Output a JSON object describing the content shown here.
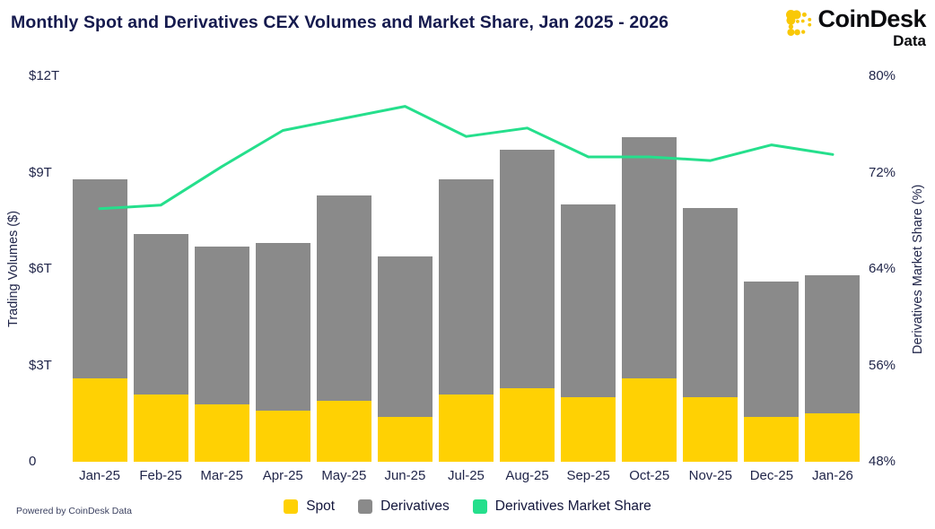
{
  "header": {
    "title": "Monthly Spot and Derivatives CEX Volumes and Market Share, Jan 2025 - 2026",
    "logo": {
      "brand": "CoinDesk",
      "sub": "Data",
      "icon_color": "#f9c806",
      "text_color": "#0a0b0e"
    }
  },
  "footer": {
    "powered_by": "Powered by CoinDesk Data"
  },
  "legend": [
    {
      "label": "Spot",
      "color": "#ffd103"
    },
    {
      "label": "Derivatives",
      "color": "#8a8a8a"
    },
    {
      "label": "Derivatives Market Share",
      "color": "#25df8c"
    }
  ],
  "chart_data": {
    "type": "combo-stacked-bar-line",
    "title": "Monthly Spot and Derivatives CEX Volumes and Market Share, Jan 2025 - 2026",
    "categories": [
      "Jan-25",
      "Feb-25",
      "Mar-25",
      "Apr-25",
      "May-25",
      "Jun-25",
      "Jul-25",
      "Aug-25",
      "Sep-25",
      "Oct-25",
      "Nov-25",
      "Dec-25",
      "Jan-26"
    ],
    "series": [
      {
        "name": "Spot",
        "type": "bar",
        "stack": "volume",
        "unit": "trillion USD",
        "color": "#ffd103",
        "values": [
          2.6,
          2.1,
          1.8,
          1.6,
          1.9,
          1.4,
          2.1,
          2.3,
          2.0,
          2.6,
          2.0,
          1.4,
          1.5
        ]
      },
      {
        "name": "Derivatives",
        "type": "bar",
        "stack": "volume",
        "unit": "trillion USD",
        "color": "#8a8a8a",
        "values": [
          6.2,
          5.0,
          4.9,
          5.2,
          6.4,
          5.0,
          6.7,
          7.4,
          6.0,
          7.5,
          5.9,
          4.2,
          4.3
        ]
      },
      {
        "name": "Derivatives Market Share",
        "type": "line",
        "axis": "right",
        "unit": "%",
        "color": "#25df8c",
        "values": [
          69.0,
          69.3,
          72.5,
          75.5,
          76.5,
          77.5,
          75.0,
          75.7,
          73.3,
          73.3,
          73.0,
          74.3,
          73.5
        ]
      }
    ],
    "stack_totals_trillions": [
      8.8,
      7.1,
      6.7,
      6.8,
      8.3,
      6.4,
      8.8,
      9.7,
      8.0,
      10.1,
      7.9,
      5.6,
      5.8
    ],
    "left_axis": {
      "label": "Trading Volumes ($)",
      "ticks": [
        "$12T",
        "$9T",
        "$6T",
        "$3T",
        "0"
      ],
      "min": 0,
      "max": 12
    },
    "right_axis": {
      "label": "Derivatives Market Share (%)",
      "ticks": [
        "80%",
        "72%",
        "64%",
        "56%",
        "48%"
      ],
      "min": 48,
      "max": 80
    },
    "grid": false,
    "legend_position": "bottom"
  }
}
